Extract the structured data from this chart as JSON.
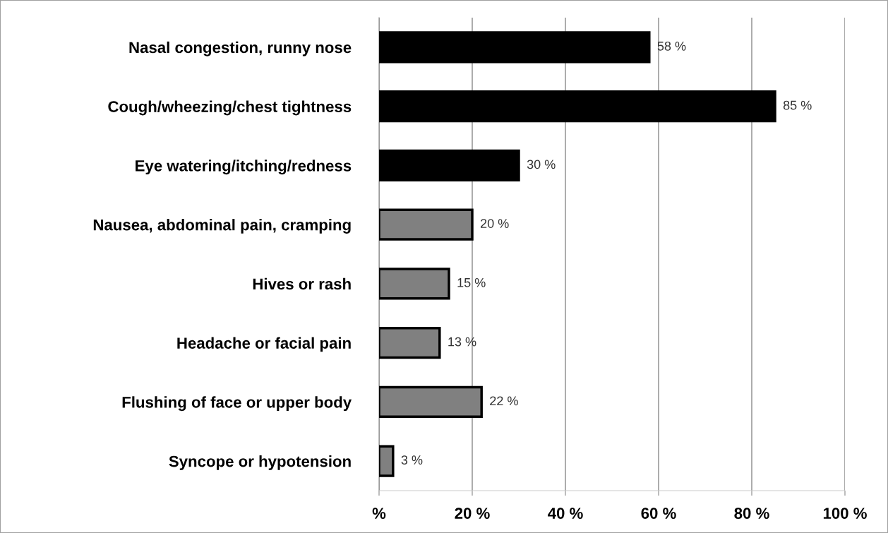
{
  "chart_data": {
    "type": "bar",
    "orientation": "horizontal",
    "categories": [
      "Nasal congestion, runny nose",
      "Cough/wheezing/chest tightness",
      "Eye watering/itching/redness",
      "Nausea, abdominal pain, cramping",
      "Hives or rash",
      "Headache or facial pain",
      "Flushing of face or upper body",
      "Syncope or hypotension"
    ],
    "values": [
      58,
      85,
      30,
      20,
      15,
      13,
      22,
      3
    ],
    "value_labels": [
      "58 %",
      "85 %",
      "30 %",
      "20 %",
      "15 %",
      "13 %",
      "22 %",
      "3 %"
    ],
    "colors": [
      "#000000",
      "#000000",
      "#000000",
      "#808080",
      "#808080",
      "#808080",
      "#808080",
      "#808080"
    ],
    "xlim": [
      0,
      100
    ],
    "xticks": [
      {
        "value": 0,
        "label": "%"
      },
      {
        "value": 20,
        "label": "20 %"
      },
      {
        "value": 40,
        "label": "40 %"
      },
      {
        "value": 60,
        "label": "60 %"
      },
      {
        "value": 80,
        "label": "80 %"
      },
      {
        "value": 100,
        "label": "100 %"
      }
    ],
    "grid": "x",
    "legend": false
  }
}
